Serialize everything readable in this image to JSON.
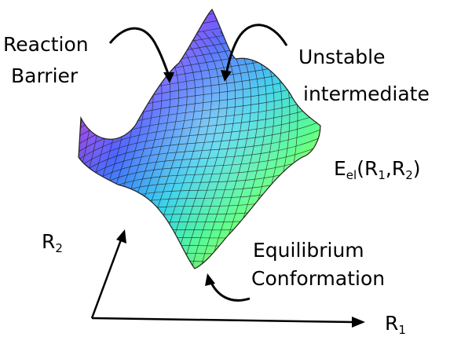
{
  "labels": {
    "reaction_barrier_line1": "Reaction",
    "reaction_barrier_line2": "Barrier",
    "unstable_line1": "Unstable",
    "unstable_line2": "intermediate",
    "energy_main": "E",
    "energy_sub": "el",
    "energy_args_open": "(R",
    "energy_arg1_sub": "1",
    "energy_args_comma": ",R",
    "energy_arg2_sub": "2",
    "energy_args_close": ")",
    "equilibrium_line1": "Equilibrium",
    "equilibrium_line2": "Conformation",
    "axis_r2_main": "R",
    "axis_r2_sub": "2",
    "axis_r1_main": "R",
    "axis_r1_sub": "1"
  },
  "colors": {
    "mesh_line": "#1a1a1a",
    "arrow": "#000000",
    "text": "#000000"
  }
}
